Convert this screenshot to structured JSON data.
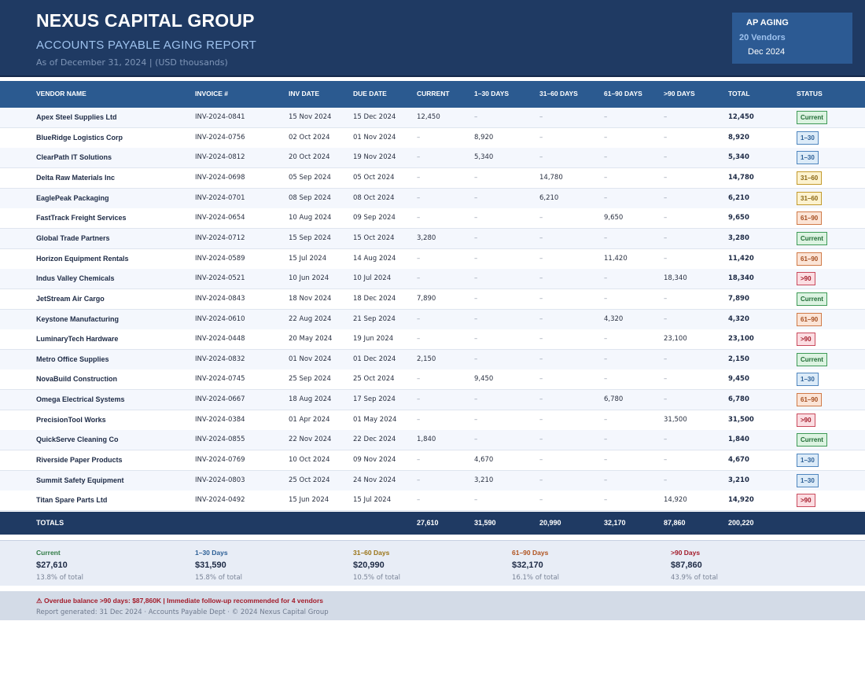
{
  "header": {
    "company": "NEXUS CAPITAL GROUP",
    "report_title": "ACCOUNTS PAYABLE AGING REPORT",
    "as_of": "As of December 31, 2024  |  (USD thousands)",
    "badge": {
      "title": "AP AGING",
      "vendors": "20 Vendors",
      "period": "Dec 2024"
    }
  },
  "colors": {
    "header_bg": "#1f3a63",
    "table_header_bg": "#2b5a90",
    "badge_bg": "#2c5a93",
    "alert": "#a31b2a"
  },
  "table": {
    "columns": [
      "VENDOR NAME",
      "INVOICE #",
      "INV DATE",
      "DUE DATE",
      "CURRENT",
      "1–30 DAYS",
      "31–60 DAYS",
      "61–90 DAYS",
      ">90 DAYS",
      "TOTAL",
      "STATUS"
    ],
    "rows": [
      [
        "Apex Steel Supplies Ltd",
        "INV-2024-0841",
        "15 Nov 2024",
        "15 Dec 2024",
        "12,450",
        "–",
        "–",
        "–",
        "–",
        "12,450",
        "Current"
      ],
      [
        "BlueRidge Logistics Corp",
        "INV-2024-0756",
        "02 Oct 2024",
        "01 Nov 2024",
        "–",
        "8,920",
        "–",
        "–",
        "–",
        "8,920",
        "1–30"
      ],
      [
        "ClearPath IT Solutions",
        "INV-2024-0812",
        "20 Oct 2024",
        "19 Nov 2024",
        "–",
        "5,340",
        "–",
        "–",
        "–",
        "5,340",
        "1–30"
      ],
      [
        "Delta Raw Materials Inc",
        "INV-2024-0698",
        "05 Sep 2024",
        "05 Oct 2024",
        "–",
        "–",
        "14,780",
        "–",
        "–",
        "14,780",
        "31–60"
      ],
      [
        "EaglePeak Packaging",
        "INV-2024-0701",
        "08 Sep 2024",
        "08 Oct 2024",
        "–",
        "–",
        "6,210",
        "–",
        "–",
        "6,210",
        "31–60"
      ],
      [
        "FastTrack Freight Services",
        "INV-2024-0654",
        "10 Aug 2024",
        "09 Sep 2024",
        "–",
        "–",
        "–",
        "9,650",
        "–",
        "9,650",
        "61–90"
      ],
      [
        "Global Trade Partners",
        "INV-2024-0712",
        "15 Sep 2024",
        "15 Oct 2024",
        "3,280",
        "–",
        "–",
        "–",
        "–",
        "3,280",
        "Current"
      ],
      [
        "Horizon Equipment Rentals",
        "INV-2024-0589",
        "15 Jul 2024",
        "14 Aug 2024",
        "–",
        "–",
        "–",
        "11,420",
        "–",
        "11,420",
        "61–90"
      ],
      [
        "Indus Valley Chemicals",
        "INV-2024-0521",
        "10 Jun 2024",
        "10 Jul 2024",
        "–",
        "–",
        "–",
        "–",
        "18,340",
        "18,340",
        ">90"
      ],
      [
        "JetStream Air Cargo",
        "INV-2024-0843",
        "18 Nov 2024",
        "18 Dec 2024",
        "7,890",
        "–",
        "–",
        "–",
        "–",
        "7,890",
        "Current"
      ],
      [
        "Keystone Manufacturing",
        "INV-2024-0610",
        "22 Aug 2024",
        "21 Sep 2024",
        "–",
        "–",
        "–",
        "4,320",
        "–",
        "4,320",
        "61–90"
      ],
      [
        "LuminaryTech Hardware",
        "INV-2024-0448",
        "20 May 2024",
        "19 Jun 2024",
        "–",
        "–",
        "–",
        "–",
        "23,100",
        "23,100",
        ">90"
      ],
      [
        "Metro Office Supplies",
        "INV-2024-0832",
        "01 Nov 2024",
        "01 Dec 2024",
        "2,150",
        "–",
        "–",
        "–",
        "–",
        "2,150",
        "Current"
      ],
      [
        "NovaBuild Construction",
        "INV-2024-0745",
        "25 Sep 2024",
        "25 Oct 2024",
        "–",
        "9,450",
        "–",
        "–",
        "–",
        "9,450",
        "1–30"
      ],
      [
        "Omega Electrical Systems",
        "INV-2024-0667",
        "18 Aug 2024",
        "17 Sep 2024",
        "–",
        "–",
        "–",
        "6,780",
        "–",
        "6,780",
        "61–90"
      ],
      [
        "PrecisionTool Works",
        "INV-2024-0384",
        "01 Apr 2024",
        "01 May 2024",
        "–",
        "–",
        "–",
        "–",
        "31,500",
        "31,500",
        ">90"
      ],
      [
        "QuickServe Cleaning Co",
        "INV-2024-0855",
        "22 Nov 2024",
        "22 Dec 2024",
        "1,840",
        "–",
        "–",
        "–",
        "–",
        "1,840",
        "Current"
      ],
      [
        "Riverside Paper Products",
        "INV-2024-0769",
        "10 Oct 2024",
        "09 Nov 2024",
        "–",
        "4,670",
        "–",
        "–",
        "–",
        "4,670",
        "1–30"
      ],
      [
        "Summit Safety Equipment",
        "INV-2024-0803",
        "25 Oct 2024",
        "24 Nov 2024",
        "–",
        "3,210",
        "–",
        "–",
        "–",
        "3,210",
        "1–30"
      ],
      [
        "Titan Spare Parts Ltd",
        "INV-2024-0492",
        "15 Jun 2024",
        "15 Jul 2024",
        "–",
        "–",
        "–",
        "–",
        "14,920",
        "14,920",
        ">90"
      ]
    ],
    "totals": {
      "label": "TOTALS",
      "current": "27,610",
      "d1_30": "31,590",
      "d31_60": "20,990",
      "d61_90": "32,170",
      "d90": "87,860",
      "total": "200,220"
    }
  },
  "status_styles": {
    "Current": {
      "bg": "#dcf3e1",
      "border": "#3e9a57",
      "color": "#1f6b34"
    },
    "1–30": {
      "bg": "#dcebf8",
      "border": "#4f86bf",
      "color": "#2c5f96"
    },
    "31–60": {
      "bg": "#fcf2cf",
      "border": "#c39a2b",
      "color": "#8a6612"
    },
    "61–90": {
      "bg": "#fbe4d6",
      "border": "#d07a48",
      "color": "#a54d1f"
    },
    ">90": {
      "bg": "#fbdde2",
      "border": "#c94a5d",
      "color": "#a31b2a"
    }
  },
  "summary": [
    {
      "label": "Current",
      "amount": "$27,610",
      "pct": "13.8% of total",
      "color": "#2f7a44"
    },
    {
      "label": "1–30 Days",
      "amount": "$31,590",
      "pct": "15.8% of total",
      "color": "#2c5f96"
    },
    {
      "label": "31–60 Days",
      "amount": "$20,990",
      "pct": "10.5% of total",
      "color": "#9a7418"
    },
    {
      "label": "61–90 Days",
      "amount": "$32,170",
      "pct": "16.1% of total",
      "color": "#b0531f"
    },
    {
      "label": ">90 Days",
      "amount": "$87,860",
      "pct": "43.9% of total",
      "color": "#a31b2a"
    }
  ],
  "footer": {
    "alert": "⚠  Overdue balance >90 days: $87,860K  |  Immediate follow-up recommended for 4 vendors",
    "note": "Report generated: 31 Dec 2024  ·  Accounts Payable Dept  ·  © 2024 Nexus Capital Group"
  }
}
